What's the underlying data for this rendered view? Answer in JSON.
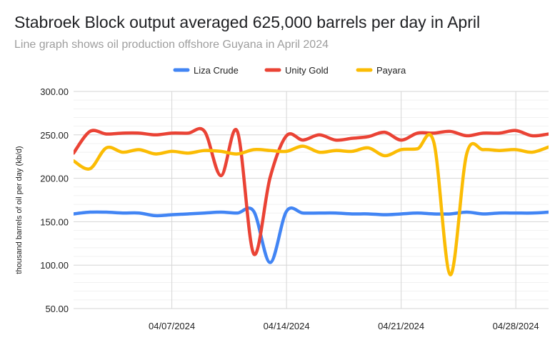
{
  "chart_data": {
    "type": "line",
    "title": "Stabroek Block output averaged 625,000 barrels per day in April",
    "subtitle": "Line graph shows oil production offshore Guyana in April 2024",
    "ylabel": "thousand barrels of oil per day (kb/d)",
    "xlabel": "",
    "ylim": [
      50,
      300
    ],
    "yticks": [
      50,
      100,
      150,
      200,
      250,
      300
    ],
    "ytick_labels": [
      "50.00",
      "100.00",
      "150.00",
      "200.00",
      "250.00",
      "300.00"
    ],
    "xlim": [
      "2024-04-01",
      "2024-04-30"
    ],
    "xticks": [
      "2024-04-07",
      "2024-04-14",
      "2024-04-21",
      "2024-04-28"
    ],
    "xtick_labels": [
      "04/07/2024",
      "04/14/2024",
      "04/21/2024",
      "04/28/2024"
    ],
    "legend_position": "top",
    "grid": true,
    "x": [
      "2024-04-01",
      "2024-04-02",
      "2024-04-03",
      "2024-04-04",
      "2024-04-05",
      "2024-04-06",
      "2024-04-07",
      "2024-04-08",
      "2024-04-09",
      "2024-04-10",
      "2024-04-11",
      "2024-04-12",
      "2024-04-13",
      "2024-04-14",
      "2024-04-15",
      "2024-04-16",
      "2024-04-17",
      "2024-04-18",
      "2024-04-19",
      "2024-04-20",
      "2024-04-21",
      "2024-04-22",
      "2024-04-23",
      "2024-04-24",
      "2024-04-25",
      "2024-04-26",
      "2024-04-27",
      "2024-04-28",
      "2024-04-29",
      "2024-04-30"
    ],
    "series": [
      {
        "name": "Liza Crude",
        "color": "#4285f4",
        "values": [
          159,
          161,
          161,
          160,
          160,
          157,
          158,
          159,
          160,
          161,
          160,
          162,
          103,
          162,
          160,
          160,
          160,
          159,
          159,
          158,
          159,
          160,
          159,
          159,
          161,
          159,
          160,
          160,
          160,
          161
        ]
      },
      {
        "name": "Unity Gold",
        "color": "#ea4335",
        "values": [
          229,
          254,
          251,
          252,
          252,
          250,
          252,
          252,
          254,
          203,
          254,
          113,
          201,
          249,
          244,
          250,
          244,
          246,
          248,
          253,
          244,
          252,
          252,
          254,
          249,
          252,
          252,
          255,
          249,
          251
        ]
      },
      {
        "name": "Payara",
        "color": "#fbbc04",
        "values": [
          220,
          211,
          235,
          230,
          233,
          228,
          231,
          229,
          232,
          231,
          228,
          233,
          232,
          231,
          237,
          230,
          232,
          231,
          235,
          226,
          233,
          234,
          241,
          89,
          228,
          233,
          232,
          233,
          230,
          236
        ]
      }
    ]
  }
}
